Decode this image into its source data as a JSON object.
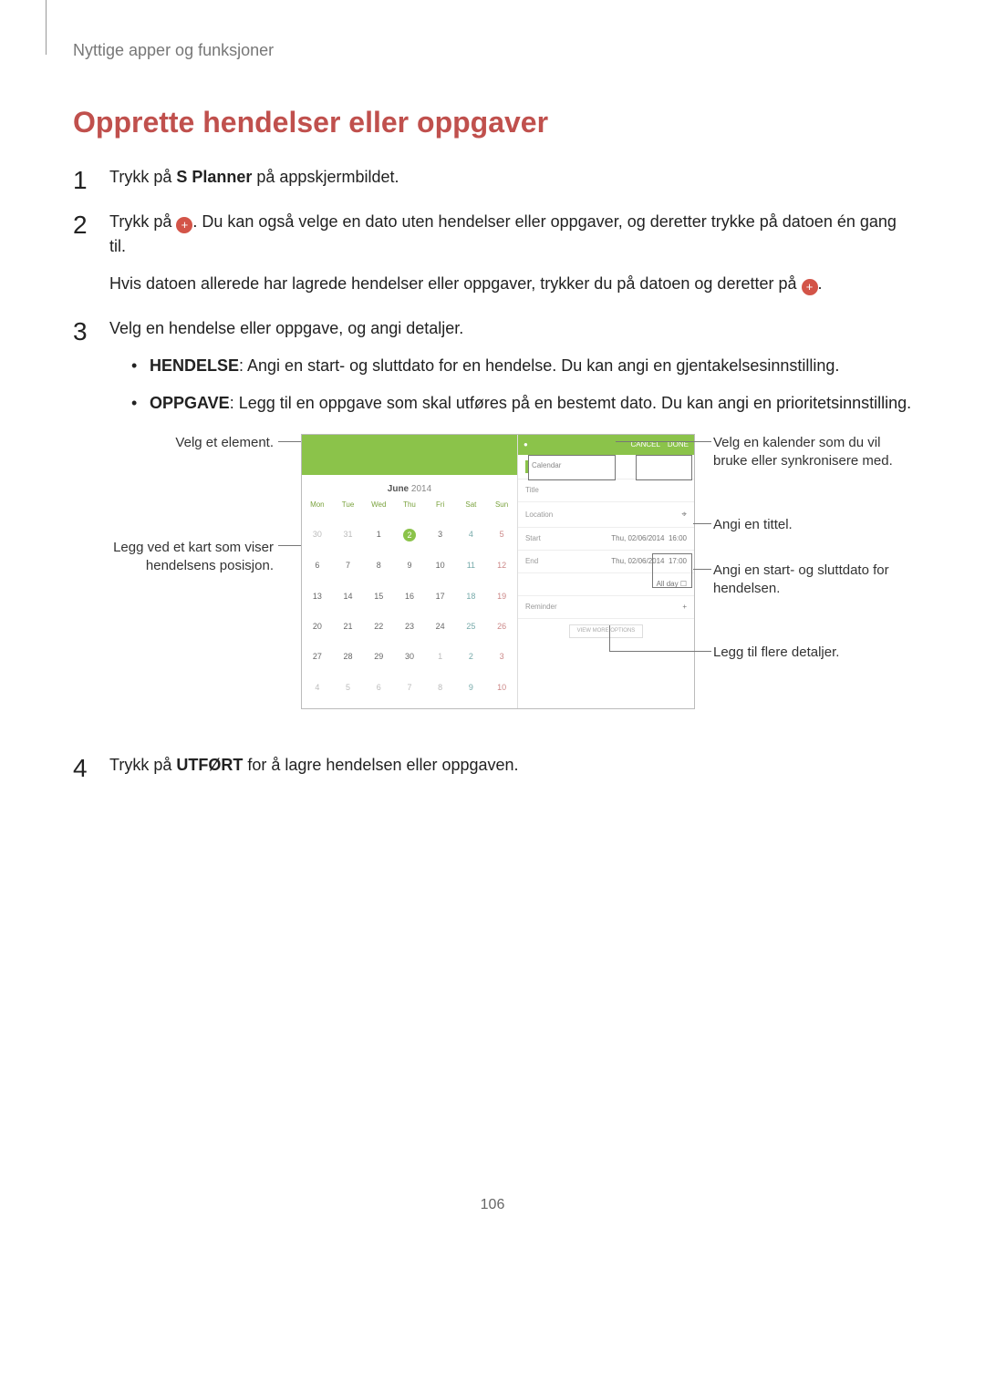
{
  "header": "Nyttige apper og funksjoner",
  "title": "Opprette hendelser eller oppgaver",
  "colors": {
    "heading": "#c0504d",
    "accent_green": "#8bc34a",
    "plus_icon_bg": "#d35448",
    "text": "#222222"
  },
  "steps": {
    "s1": {
      "pre": "Trykk på ",
      "bold": "S Planner",
      "post": " på appskjermbildet."
    },
    "s2": {
      "p1_pre": "Trykk på ",
      "p1_post": ". Du kan også velge en dato uten hendelser eller oppgaver, og deretter trykke på datoen én gang til.",
      "p2_pre": "Hvis datoen allerede har lagrede hendelser eller oppgaver, trykker du på datoen og deretter på ",
      "p2_post": "."
    },
    "s3": {
      "intro": "Velg en hendelse eller oppgave, og angi detaljer.",
      "b1_label": "HENDELSE",
      "b1_text": ": Angi en start- og sluttdato for en hendelse. Du kan angi en gjentakelsesinnstilling.",
      "b2_label": "OPPGAVE",
      "b2_text": ": Legg til en oppgave som skal utføres på en bestemt dato. Du kan angi en prioritetsinnstilling."
    },
    "s4": {
      "pre": "Trykk på ",
      "bold": "UTFØRT",
      "post": " for å lagre hendelsen eller oppgaven."
    }
  },
  "callouts": {
    "left1": "Velg et element.",
    "left2": "Legg ved et kart som viser hendelsens posisjon.",
    "right1": "Velg en kalender som du vil bruke eller synkronisere med.",
    "right2": "Angi en tittel.",
    "right3": "Angi en start- og sluttdato for hendelsen.",
    "right4": "Legg til flere detaljer."
  },
  "phone": {
    "month_label": "June",
    "year": "2014",
    "weekdays": [
      "Mon",
      "Tue",
      "Wed",
      "Thu",
      "Fri",
      "Sat",
      "Sun"
    ],
    "cells": [
      {
        "n": "30",
        "cls": "dim"
      },
      {
        "n": "31",
        "cls": "dim"
      },
      {
        "n": "1"
      },
      {
        "n": "2",
        "cls": "today"
      },
      {
        "n": "3"
      },
      {
        "n": "4",
        "cls": "blue"
      },
      {
        "n": "5",
        "cls": "red"
      },
      {
        "n": "6"
      },
      {
        "n": "7"
      },
      {
        "n": "8"
      },
      {
        "n": "9"
      },
      {
        "n": "10"
      },
      {
        "n": "11",
        "cls": "blue"
      },
      {
        "n": "12",
        "cls": "red"
      },
      {
        "n": "13"
      },
      {
        "n": "14"
      },
      {
        "n": "15"
      },
      {
        "n": "16"
      },
      {
        "n": "17"
      },
      {
        "n": "18",
        "cls": "blue"
      },
      {
        "n": "19",
        "cls": "red"
      },
      {
        "n": "20"
      },
      {
        "n": "21"
      },
      {
        "n": "22"
      },
      {
        "n": "23"
      },
      {
        "n": "24"
      },
      {
        "n": "25",
        "cls": "blue"
      },
      {
        "n": "26",
        "cls": "red"
      },
      {
        "n": "27"
      },
      {
        "n": "28"
      },
      {
        "n": "29"
      },
      {
        "n": "30"
      },
      {
        "n": "1",
        "cls": "dim"
      },
      {
        "n": "2",
        "cls": "dim blue"
      },
      {
        "n": "3",
        "cls": "dim red"
      },
      {
        "n": "4",
        "cls": "dim"
      },
      {
        "n": "5",
        "cls": "dim"
      },
      {
        "n": "6",
        "cls": "dim"
      },
      {
        "n": "7",
        "cls": "dim"
      },
      {
        "n": "8",
        "cls": "dim"
      },
      {
        "n": "9",
        "cls": "dim blue"
      },
      {
        "n": "10",
        "cls": "dim red"
      }
    ],
    "form": {
      "cancel": "CANCEL",
      "done": "DONE",
      "calendar_label": "Calendar",
      "title_placeholder": "Title",
      "location_placeholder": "Location",
      "start_label": "Start",
      "start_date": "Thu, 02/06/2014",
      "start_time": "16:00",
      "end_label": "End",
      "end_date": "Thu, 02/06/2014",
      "end_time": "17:00",
      "allday_label": "All day",
      "reminder_label": "Reminder",
      "more_label": "VIEW MORE OPTIONS"
    }
  },
  "page_number": "106"
}
